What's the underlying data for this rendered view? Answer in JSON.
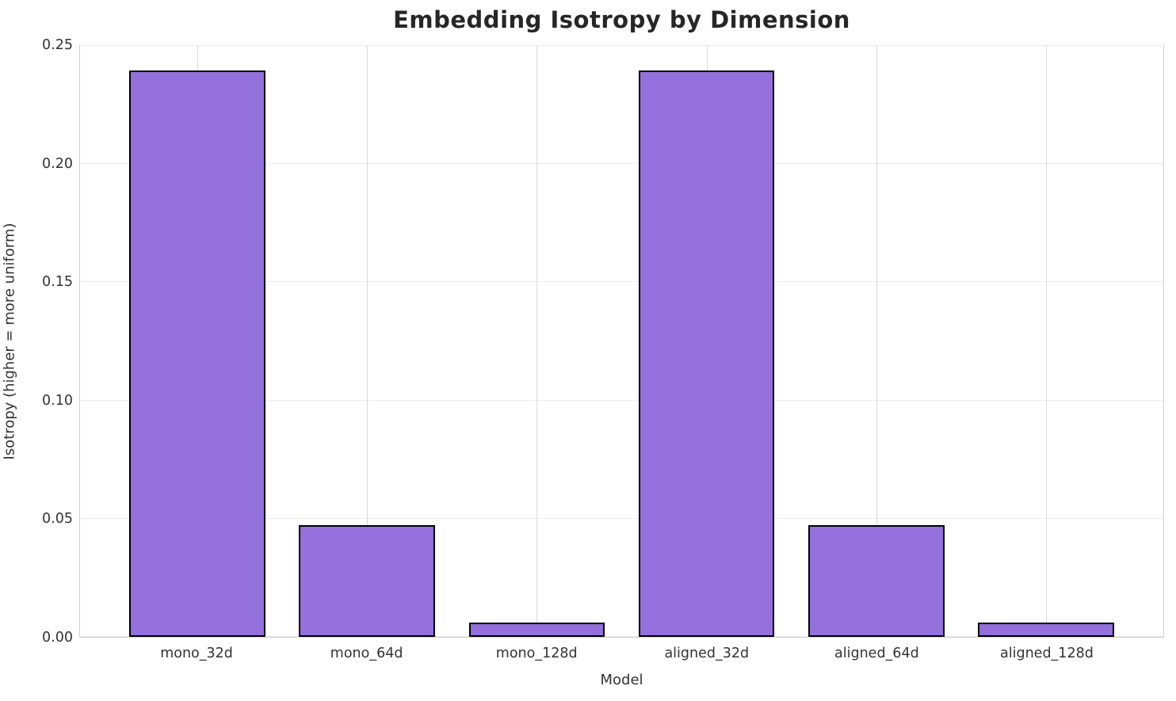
{
  "chart_data": {
    "type": "bar",
    "title": "Embedding Isotropy by Dimension",
    "xlabel": "Model",
    "ylabel": "Isotropy (higher = more uniform)",
    "categories": [
      "mono_32d",
      "mono_64d",
      "mono_128d",
      "aligned_32d",
      "aligned_64d",
      "aligned_128d"
    ],
    "values": [
      0.239,
      0.047,
      0.006,
      0.239,
      0.047,
      0.006
    ],
    "ylim": [
      0,
      0.25
    ],
    "ytick_labels": [
      "0.00",
      "0.05",
      "0.10",
      "0.15",
      "0.20",
      "0.25"
    ],
    "grid": "on",
    "legend_position": "none",
    "bar_color": "#9370DB",
    "bar_edge_color": "#000000"
  }
}
